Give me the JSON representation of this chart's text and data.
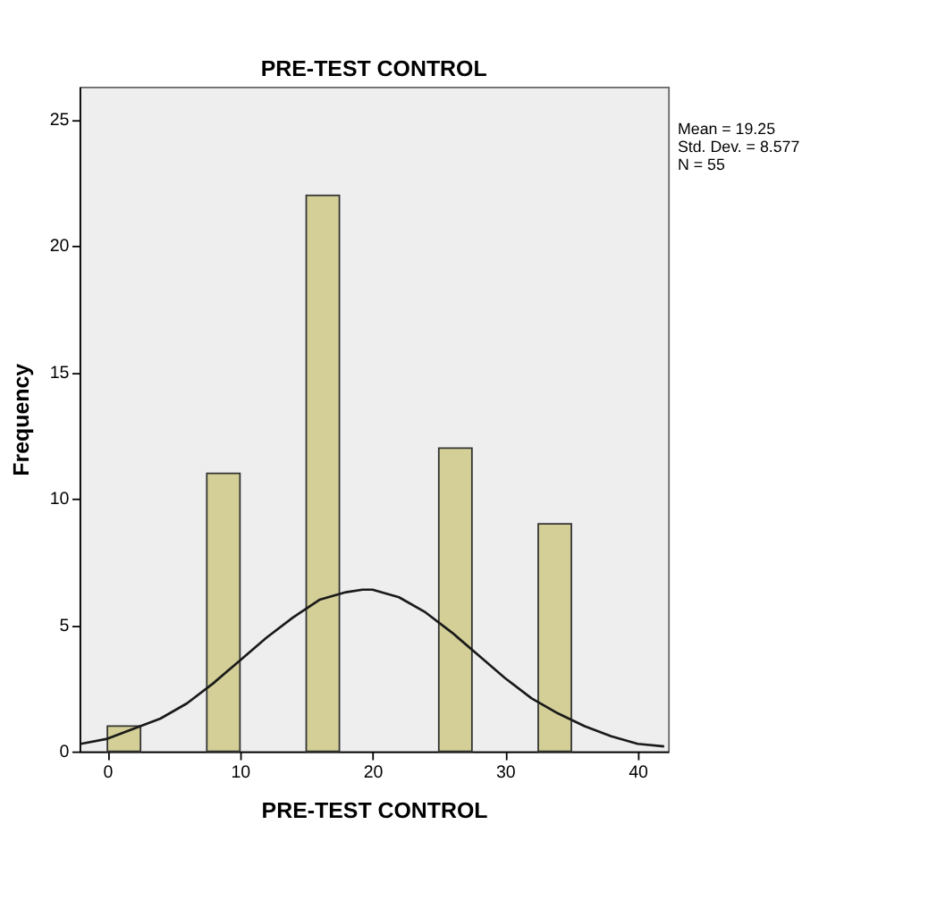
{
  "chart_data": {
    "type": "histogram",
    "title": "PRE-TEST CONTROL",
    "xlabel": "PRE-TEST CONTROL",
    "ylabel": "Frequency",
    "annotations": [
      "Mean = 19.25",
      "Std. Dev. = 8.577",
      "N = 55"
    ],
    "bins": [
      0,
      2.5,
      5,
      7.5,
      10,
      12.5,
      15,
      17.5,
      20,
      22.5,
      25,
      27.5,
      30,
      32.5,
      35
    ],
    "series": [
      {
        "color": "#d3cf97",
        "values": [
          1,
          0,
          0,
          11,
          0,
          0,
          22,
          0,
          0,
          0,
          12,
          0,
          0,
          9
        ]
      },
      {
        "type": "line",
        "color": "#1a1a1a",
        "x": [
          -2,
          0,
          2,
          4,
          6,
          8,
          10,
          12,
          14,
          16,
          18,
          19.25,
          20,
          22,
          24,
          26,
          28,
          30,
          32,
          34,
          36,
          38,
          40,
          42
        ],
        "values": [
          0.3,
          0.5,
          0.9,
          1.3,
          1.9,
          2.7,
          3.6,
          4.5,
          5.3,
          6.0,
          6.3,
          6.4,
          6.4,
          6.1,
          5.5,
          4.7,
          3.8,
          2.9,
          2.1,
          1.5,
          1.0,
          0.6,
          0.3,
          0.2
        ]
      }
    ],
    "xlim": [
      -2.1,
      42.3
    ],
    "ylim": [
      0,
      26.3
    ],
    "xticks": [
      0,
      10,
      20,
      30,
      40
    ],
    "yticks": [
      0,
      5,
      10,
      15,
      20,
      25
    ],
    "grid": false
  }
}
